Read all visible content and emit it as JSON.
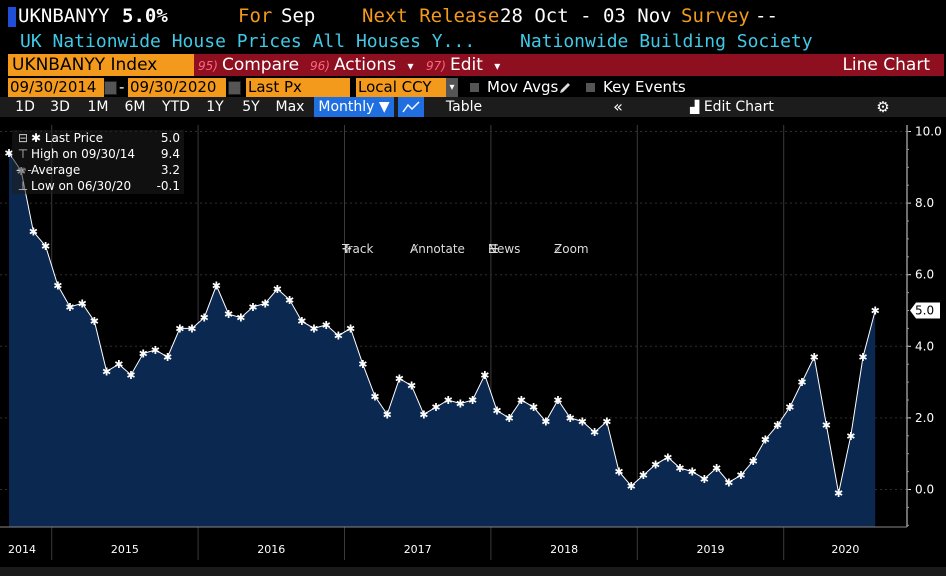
{
  "header": {
    "ticker": "UKNBANYY",
    "value": "5.0%",
    "for_label": "For",
    "for_value": "Sep",
    "next_release_label": "Next Release",
    "next_release_value": "28 Oct - 03 Nov",
    "survey_label": "Survey",
    "survey_value": "--",
    "description": "UK Nationwide House Prices All Houses Y...",
    "source": "Nationwide Building Society"
  },
  "toolbar": {
    "security": "UKNBANYY Index",
    "compare_num": "95)",
    "compare_label": "Compare",
    "actions_num": "96)",
    "actions_label": "Actions",
    "actions_arrow": "▾",
    "edit_num": "97)",
    "edit_label": "Edit",
    "edit_arrow": "▾",
    "chart_type": "Line Chart"
  },
  "controls": {
    "start_date": "09/30/2014",
    "date_sep": "-",
    "end_date": "09/30/2020",
    "field": "Last Px",
    "currency": "Local CCY",
    "mov_avgs": "Mov Avgs",
    "key_events": "Key Events"
  },
  "ranges": {
    "buttons": [
      "1D",
      "3D",
      "1M",
      "6M",
      "YTD",
      "1Y",
      "5Y",
      "Max"
    ],
    "frequency": "Monthly ▼",
    "table": "Table",
    "collapse": "«",
    "edit_chart": "Edit Chart"
  },
  "tools": {
    "track": "Track",
    "annotate": "Annotate",
    "news": "News",
    "zoom": "Zoom"
  },
  "legend": {
    "last_price_label": "Last Price",
    "last_price_value": "5.0",
    "high_label": "High on 09/30/14",
    "high_value": "9.4",
    "average_label": "Average",
    "average_value": "3.2",
    "low_label": "Low on 06/30/20",
    "low_value": "-0.1"
  },
  "colors": {
    "accent_orange": "#f39a1d",
    "edit_red": "#8e1020",
    "area_fill": "#0b2850",
    "line": "#ffffff",
    "cyan_text": "#3fc9e6"
  },
  "chart_data": {
    "type": "area",
    "ylim": [
      -1,
      10.4
    ],
    "yticks": [
      "10.0",
      "8.0",
      "6.0",
      "4.0",
      "2.0",
      "0.0"
    ],
    "last_value_label": "5.0",
    "xlabels": [
      "2014",
      "2015",
      "2016",
      "2017",
      "2018",
      "2019",
      "2020"
    ],
    "x_start": "2014-09",
    "series": [
      {
        "values": [
          9.4,
          8.9,
          7.2,
          6.8,
          5.7,
          5.1,
          5.2,
          4.7,
          3.3,
          3.5,
          3.2,
          3.8,
          3.9,
          3.7,
          4.5,
          4.5,
          4.8,
          5.7,
          4.9,
          4.8,
          5.1,
          5.2,
          5.6,
          5.3,
          4.7,
          4.5,
          4.6,
          4.3,
          4.5,
          3.5,
          2.6,
          2.1,
          3.1,
          2.9,
          2.1,
          2.3,
          2.5,
          2.4,
          2.5,
          3.2,
          2.2,
          2.0,
          2.5,
          2.3,
          1.9,
          2.5,
          2.0,
          1.9,
          1.6,
          1.9,
          0.5,
          0.1,
          0.4,
          0.7,
          0.9,
          0.6,
          0.5,
          0.3,
          0.6,
          0.2,
          0.4,
          0.8,
          1.4,
          1.8,
          2.3,
          3.0,
          3.7,
          1.8,
          -0.1,
          1.5,
          3.7,
          5.0
        ]
      }
    ]
  }
}
